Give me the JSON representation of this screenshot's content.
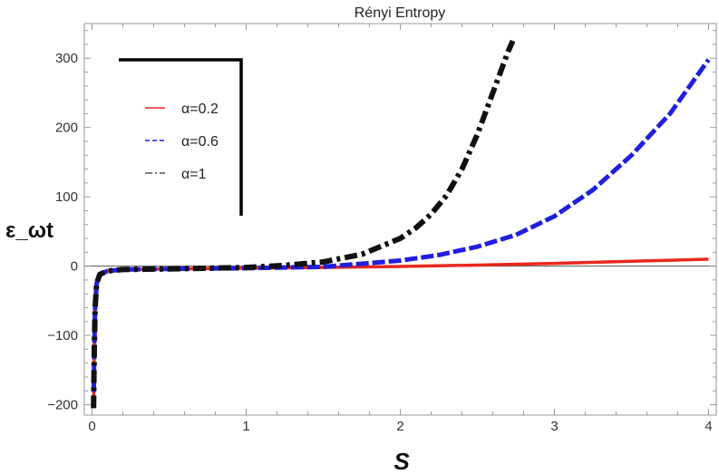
{
  "chart_data": {
    "type": "line",
    "title": "Rényi Entropy",
    "xlabel": "S",
    "ylabel": "ε_ωt",
    "xlim": [
      -0.05,
      4.05
    ],
    "ylim": [
      -215,
      350
    ],
    "xticks": [
      0,
      1,
      2,
      3,
      4
    ],
    "yticks": [
      -200,
      -100,
      0,
      100,
      200,
      300
    ],
    "grid": false,
    "legend_position": "top-left",
    "series": [
      {
        "name": "α=0.2",
        "color": "#e8281e",
        "dash": "solid",
        "x": [
          0.01,
          0.015,
          0.02,
          0.03,
          0.05,
          0.1,
          0.2,
          0.5,
          1.0,
          1.5,
          2.0,
          2.5,
          3.0,
          3.5,
          4.0
        ],
        "y": [
          -205,
          -120,
          -60,
          -25,
          -12,
          -7,
          -5,
          -4,
          -3,
          -2,
          -0.5,
          1.5,
          4,
          7,
          10
        ]
      },
      {
        "name": "α=0.6",
        "color": "#1f1fe0",
        "dash": "dashed",
        "x": [
          0.01,
          0.015,
          0.02,
          0.03,
          0.05,
          0.1,
          0.2,
          0.5,
          1.0,
          1.5,
          2.0,
          2.25,
          2.5,
          2.75,
          3.0,
          3.25,
          3.5,
          3.75,
          4.0
        ],
        "y": [
          -205,
          -120,
          -60,
          -25,
          -12,
          -7,
          -5,
          -4,
          -3,
          -1,
          8,
          16,
          28,
          45,
          72,
          110,
          160,
          220,
          298
        ]
      },
      {
        "name": "α=1",
        "color": "#111111",
        "dash": "dashdot",
        "x": [
          0.01,
          0.015,
          0.02,
          0.03,
          0.05,
          0.1,
          0.2,
          0.5,
          1.0,
          1.25,
          1.5,
          1.75,
          2.0,
          2.1,
          2.2,
          2.3,
          2.4,
          2.5,
          2.6,
          2.7,
          2.73
        ],
        "y": [
          -205,
          -120,
          -60,
          -25,
          -12,
          -7,
          -5,
          -4,
          -2,
          1,
          6,
          17,
          40,
          55,
          75,
          102,
          140,
          190,
          250,
          310,
          325
        ]
      }
    ]
  }
}
